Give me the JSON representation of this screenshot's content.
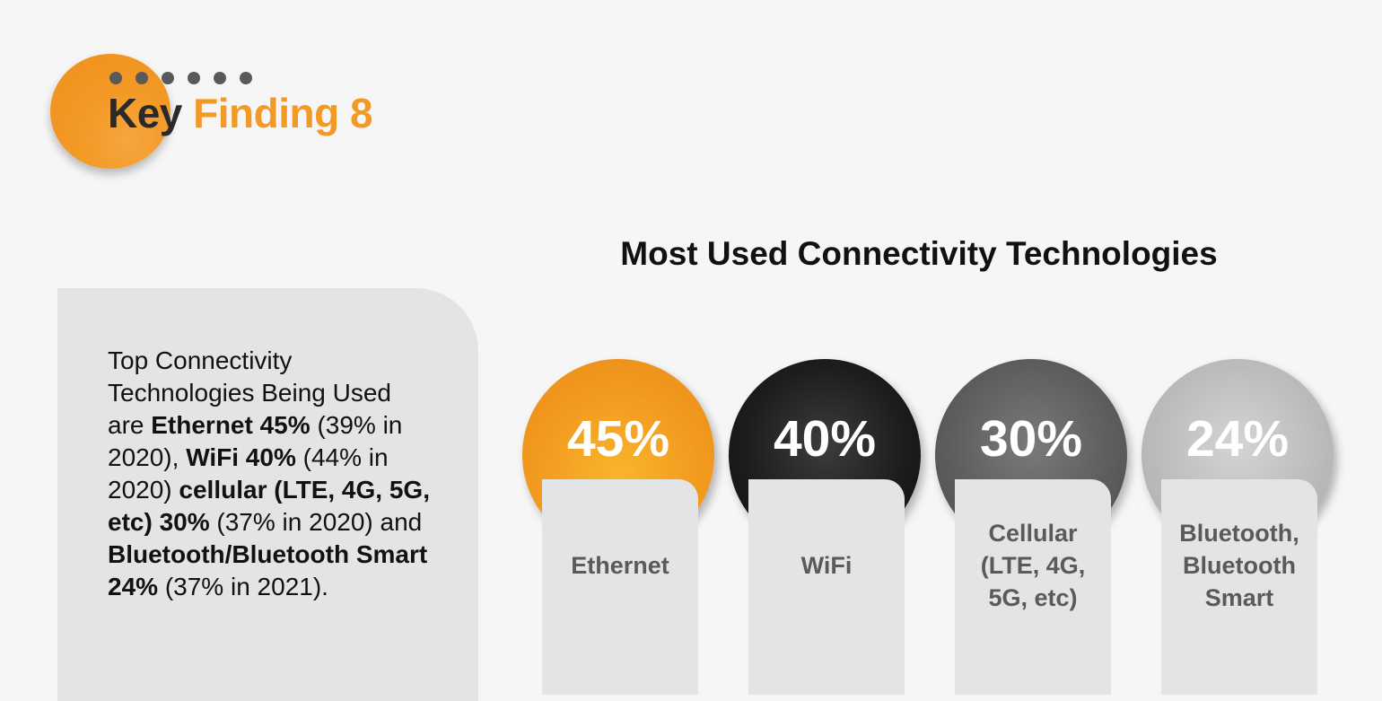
{
  "header": {
    "title_part1": "Key",
    "title_part2": "Finding 8",
    "accent_color": "#f39a26"
  },
  "summary": {
    "line1": "Top Connectivity Technologies Being Used are",
    "ethernet_bold": "Ethernet 45%",
    "ethernet_prev": "(39% in 2020),",
    "wifi_bold": "WiFi 40%",
    "wifi_prev": "(44% in 2020)",
    "cellular_bold": "cellular (LTE, 4G, 5G, etc) 30%",
    "cellular_prev": "(37% in 2020) and",
    "bluetooth_bold": "Bluetooth/Bluetooth Smart 24%",
    "bluetooth_prev": "(37% in 2021)."
  },
  "chart_data": {
    "type": "bar",
    "title": "Most Used Connectivity Technologies",
    "categories": [
      "Ethernet",
      "WiFi",
      "Cellular\n(LTE, 4G,\n5G, etc)",
      "Bluetooth,\nBluetooth\nSmart"
    ],
    "values": [
      45,
      40,
      30,
      24
    ],
    "value_labels": [
      "45%",
      "40%",
      "30%",
      "24%"
    ],
    "colors": [
      "#f29a1f",
      "#1d1d1d",
      "#5e5e5e",
      "#bcbcbc"
    ],
    "unit": "%"
  }
}
